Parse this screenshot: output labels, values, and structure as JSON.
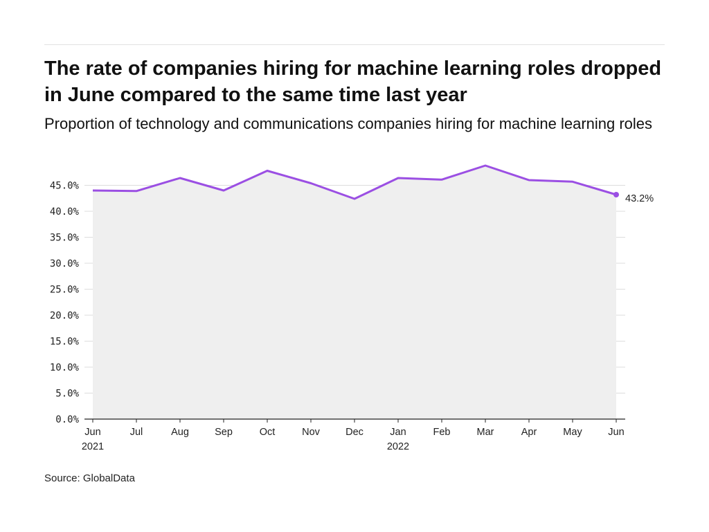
{
  "title": "The rate of companies hiring for machine learning roles dropped in June compared to the same time last year",
  "subtitle": "Proportion of technology and communications companies hiring for machine learning roles",
  "source": "Source: GlobalData",
  "colors": {
    "line": "#9b4fe3",
    "area": "#efefef",
    "grid": "#dddddd",
    "axis": "#222222"
  },
  "chart_data": {
    "type": "area",
    "x": [
      "Jun 2021",
      "Jul 2021",
      "Aug 2021",
      "Sep 2021",
      "Oct 2021",
      "Nov 2021",
      "Dec 2021",
      "Jan 2022",
      "Feb 2022",
      "Mar 2022",
      "Apr 2022",
      "May 2022",
      "Jun 2022"
    ],
    "tick_labels": [
      {
        "month": "Jun",
        "year": "2021"
      },
      {
        "month": "Jul",
        "year": ""
      },
      {
        "month": "Aug",
        "year": ""
      },
      {
        "month": "Sep",
        "year": ""
      },
      {
        "month": "Oct",
        "year": ""
      },
      {
        "month": "Nov",
        "year": ""
      },
      {
        "month": "Dec",
        "year": ""
      },
      {
        "month": "Jan",
        "year": "2022"
      },
      {
        "month": "Feb",
        "year": ""
      },
      {
        "month": "Mar",
        "year": ""
      },
      {
        "month": "Apr",
        "year": ""
      },
      {
        "month": "May",
        "year": ""
      },
      {
        "month": "Jun",
        "year": ""
      }
    ],
    "values": [
      44.0,
      43.9,
      46.4,
      44.0,
      47.8,
      45.4,
      42.4,
      46.4,
      46.1,
      48.8,
      46.0,
      45.7,
      43.2
    ],
    "ylim": [
      0,
      50
    ],
    "y_ticks": [
      "0.0%",
      "5.0%",
      "10.0%",
      "15.0%",
      "20.0%",
      "25.0%",
      "30.0%",
      "35.0%",
      "40.0%",
      "45.0%"
    ],
    "end_label": "43.2%",
    "grid": true,
    "xlabel": "",
    "ylabel": ""
  }
}
